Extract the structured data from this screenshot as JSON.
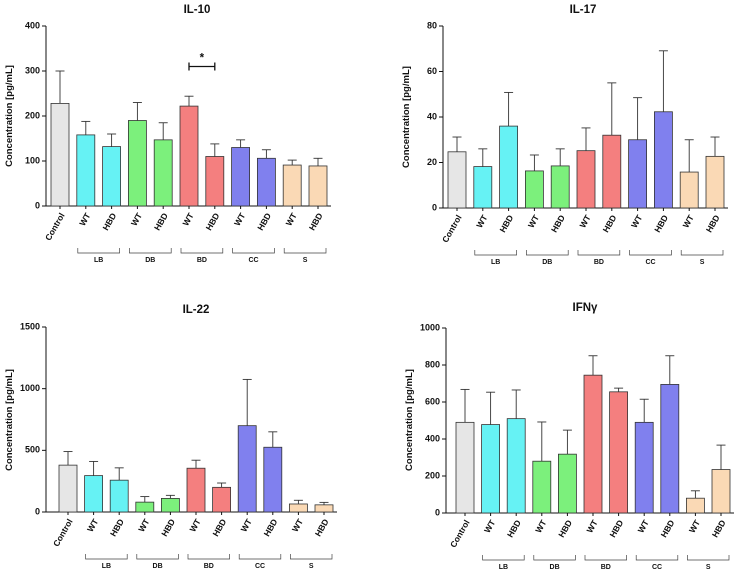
{
  "chart_data": [
    {
      "type": "bar",
      "title": "IL-10",
      "ylabel": "Concentration [pg/mL]",
      "ylim": [
        0,
        400
      ],
      "yticks": [
        0,
        100,
        200,
        300,
        400
      ],
      "categories": [
        "Control",
        "WT",
        "HBD",
        "WT",
        "HBD",
        "WT",
        "HBD",
        "WT",
        "HBD",
        "WT",
        "HBD"
      ],
      "groups": [
        "LB",
        "DB",
        "BD",
        "CC",
        "S"
      ],
      "values": [
        228,
        158,
        132,
        190,
        147,
        222,
        110,
        130,
        106,
        91,
        89
      ],
      "errors": [
        72,
        30,
        28,
        40,
        38,
        22,
        28,
        17,
        19,
        11,
        17
      ],
      "colors": [
        "#e6e6e6",
        "#66f2f4",
        "#66f2f4",
        "#7cf07c",
        "#7cf07c",
        "#f47f7f",
        "#f47f7f",
        "#8080ee",
        "#8080ee",
        "#fad9b5",
        "#fad9b5"
      ],
      "annotation": {
        "text": "*",
        "from": 5,
        "to": 6,
        "y": 310
      }
    },
    {
      "type": "bar",
      "title": "IL-17",
      "ylabel": "Concentration [pg/mL]",
      "ylim": [
        0,
        80
      ],
      "yticks": [
        0,
        20,
        40,
        60,
        80
      ],
      "categories": [
        "Control",
        "WT",
        "HBD",
        "WT",
        "HBD",
        "WT",
        "HBD",
        "WT",
        "HBD",
        "WT",
        "HBD"
      ],
      "groups": [
        "LB",
        "DB",
        "BD",
        "CC",
        "S"
      ],
      "values": [
        24.7,
        18.2,
        36.0,
        16.3,
        18.5,
        25.2,
        32.0,
        30.0,
        42.3,
        15.8,
        22.7
      ],
      "errors": [
        6.5,
        7.8,
        14.8,
        7.0,
        7.5,
        10.0,
        23.0,
        18.5,
        26.8,
        14.2,
        8.5
      ],
      "colors": [
        "#e6e6e6",
        "#66f2f4",
        "#66f2f4",
        "#7cf07c",
        "#7cf07c",
        "#f47f7f",
        "#f47f7f",
        "#8080ee",
        "#8080ee",
        "#fad9b5",
        "#fad9b5"
      ]
    },
    {
      "type": "bar",
      "title": "IL-22",
      "ylabel": "Concentration [pg/mL]",
      "ylim": [
        0,
        1500
      ],
      "yticks": [
        0,
        500,
        1000,
        1500
      ],
      "categories": [
        "Control",
        "WT",
        "HBD",
        "WT",
        "HBD",
        "WT",
        "HBD",
        "WT",
        "HBD",
        "WT",
        "HBD"
      ],
      "groups": [
        "LB",
        "DB",
        "BD",
        "CC",
        "S"
      ],
      "values": [
        380,
        295,
        258,
        80,
        110,
        355,
        200,
        700,
        525,
        65,
        58
      ],
      "errors": [
        110,
        115,
        100,
        45,
        25,
        65,
        35,
        375,
        125,
        30,
        20
      ],
      "colors": [
        "#e6e6e6",
        "#66f2f4",
        "#66f2f4",
        "#7cf07c",
        "#7cf07c",
        "#f47f7f",
        "#f47f7f",
        "#8080ee",
        "#8080ee",
        "#fad9b5",
        "#fad9b5"
      ]
    },
    {
      "type": "bar",
      "title": "IFNγ",
      "ylabel": "Concentration [pg/mL]",
      "ylim": [
        0,
        1000
      ],
      "yticks": [
        0,
        200,
        400,
        600,
        800,
        1000
      ],
      "categories": [
        "Control",
        "WT",
        "HBD",
        "WT",
        "HBD",
        "WT",
        "HBD",
        "WT",
        "HBD",
        "WT",
        "HBD"
      ],
      "groups": [
        "LB",
        "DB",
        "BD",
        "CC",
        "S"
      ],
      "values": [
        490,
        478,
        510,
        280,
        318,
        745,
        655,
        490,
        695,
        80,
        235
      ],
      "errors": [
        178,
        175,
        155,
        212,
        130,
        105,
        20,
        125,
        155,
        40,
        132
      ],
      "colors": [
        "#e6e6e6",
        "#66f2f4",
        "#66f2f4",
        "#7cf07c",
        "#7cf07c",
        "#f47f7f",
        "#f47f7f",
        "#8080ee",
        "#8080ee",
        "#fad9b5",
        "#fad9b5"
      ]
    }
  ]
}
